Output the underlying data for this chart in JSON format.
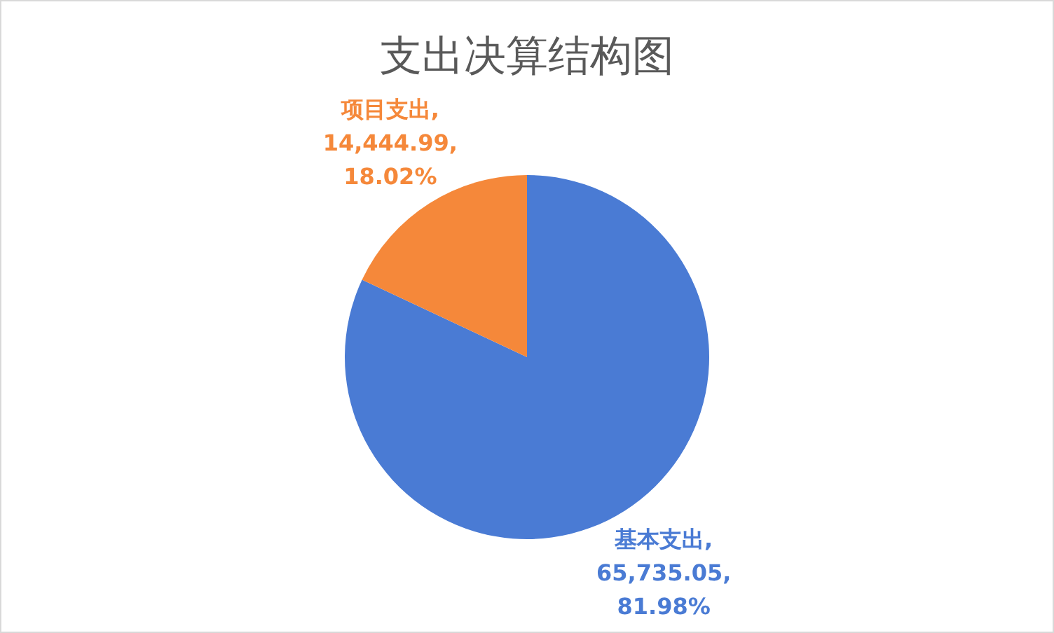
{
  "chart_data": {
    "type": "pie",
    "title": "支出决算结构图",
    "categories": [
      "基本支出",
      "项目支出"
    ],
    "values": [
      65735.05,
      14444.99
    ],
    "colors": [
      "#4a7bd4",
      "#f5883a"
    ],
    "value_labels": [
      ",\n65,735.05,\n81.98%",
      ",\n14,444.99,\n18.02%"
    ],
    "legend": false
  }
}
